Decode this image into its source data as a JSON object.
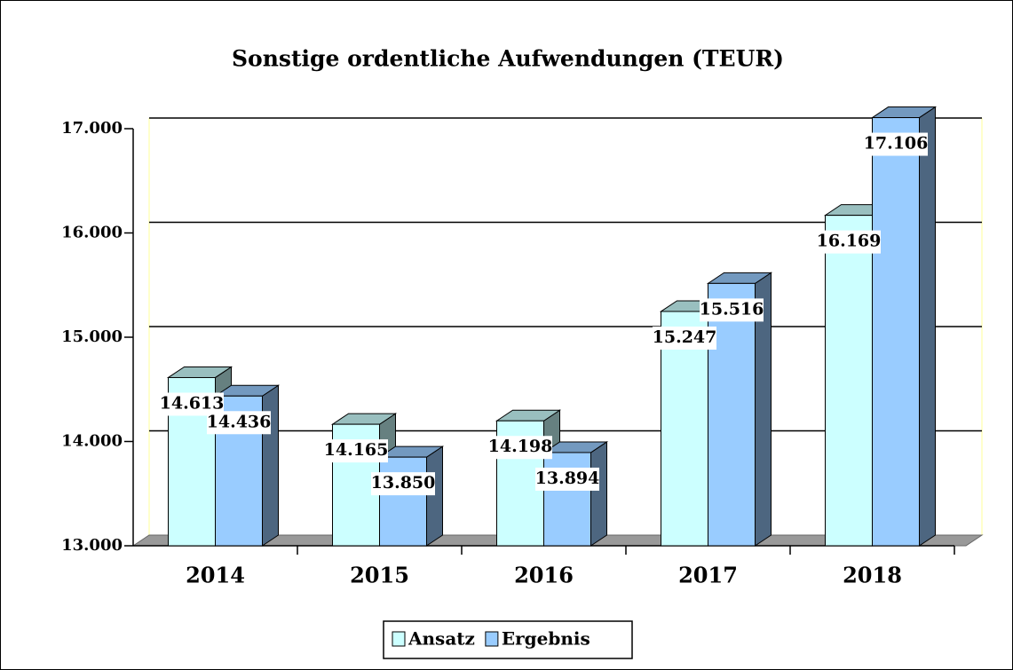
{
  "chart_data": {
    "type": "bar3d",
    "title": "Sonstige ordentliche Aufwendungen (TEUR)",
    "categories": [
      "2014",
      "2015",
      "2016",
      "2017",
      "2018"
    ],
    "series": [
      {
        "name": "Ansatz",
        "color": "#ccffff",
        "values": [
          14613,
          14165,
          14198,
          15247,
          16169
        ],
        "value_labels": [
          "14.613",
          "14.165",
          "14.198",
          "15.247",
          "16.169"
        ]
      },
      {
        "name": "Ergebnis",
        "color": "#99ccff",
        "values": [
          14436,
          13850,
          13894,
          15516,
          17106
        ],
        "value_labels": [
          "14.436",
          "13.850",
          "13.894",
          "15.516",
          "17.106"
        ]
      }
    ],
    "ylim": [
      13000,
      17000
    ],
    "yticks": [
      {
        "value": 13000,
        "label": "13.000"
      },
      {
        "value": 14000,
        "label": "14.000"
      },
      {
        "value": 15000,
        "label": "15.000"
      },
      {
        "value": 16000,
        "label": "16.000"
      },
      {
        "value": 17000,
        "label": "17.000"
      }
    ],
    "grid": true,
    "legend": "bottom"
  }
}
